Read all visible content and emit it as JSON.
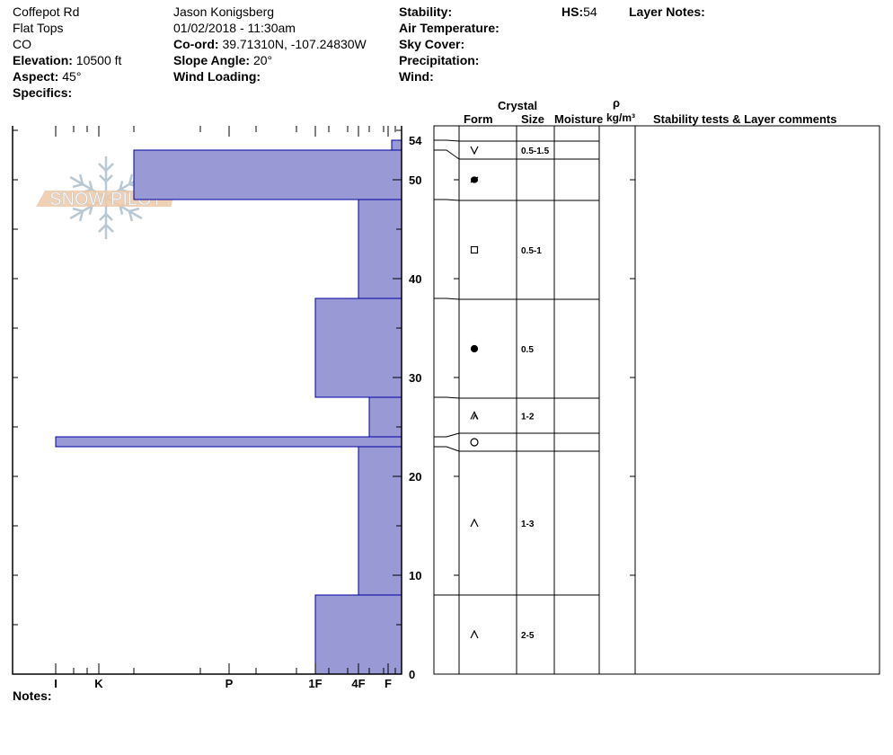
{
  "header": {
    "location": "Coffepot Rd",
    "range": "Flat Tops",
    "state": "CO",
    "elevation_label": "Elevation:",
    "elevation": "10500 ft",
    "aspect_label": "Aspect:",
    "aspect": "45°",
    "specifics_label": "Specifics:",
    "observer": "Jason Konigsberg",
    "datetime": "01/02/2018 - 11:30am",
    "coord_label": "Co-ord:",
    "coord": "39.71310N, -107.24830W",
    "slope_label": "Slope Angle:",
    "slope": "20°",
    "wind_loading_label": "Wind Loading:",
    "stability_label": "Stability:",
    "air_temp_label": "Air Temperature:",
    "sky_cover_label": "Sky Cover:",
    "precip_label": "Precipitation:",
    "wind_label": "Wind:",
    "hs_label": "HS:",
    "hs": "54",
    "layer_notes_label": "Layer Notes:"
  },
  "notes_label": "Notes:",
  "logo_text": "SNOW PILOT",
  "table_headers": {
    "crystal": "Crystal",
    "form": "Form",
    "size": "Size",
    "moisture": "Moisture",
    "rho": "ρ",
    "density_unit": "kg/m³",
    "comments": "Stability tests & Layer comments"
  },
  "colors": {
    "layer_fill": "#9999d6",
    "layer_stroke": "#0000a0"
  },
  "chart_data": {
    "type": "bar",
    "orientation": "horizontal",
    "xlabel": "",
    "ylabel": "",
    "hardness_ticks": [
      "I",
      "K",
      "P",
      "1F",
      "4F",
      "F"
    ],
    "depth_ticks": [
      0,
      10,
      20,
      30,
      40,
      50,
      54
    ],
    "ylim": [
      0,
      54
    ],
    "layers": [
      {
        "bottom": 0,
        "top": 8,
        "hardness": "1F",
        "form": "depth-hoar",
        "size": "2-5"
      },
      {
        "bottom": 8,
        "top": 23,
        "hardness": "4F",
        "form": "depth-hoar",
        "size": "1-3"
      },
      {
        "bottom": 23,
        "top": 24,
        "hardness": "I",
        "form": "melt-form",
        "size": ""
      },
      {
        "bottom": 24,
        "top": 28,
        "hardness": "4F-",
        "form": "depth-hoar-faceted",
        "size": "1-2"
      },
      {
        "bottom": 28,
        "top": 38,
        "hardness": "1F",
        "form": "rounded",
        "size": "0.5"
      },
      {
        "bottom": 38,
        "top": 48,
        "hardness": "4F",
        "form": "faceted",
        "size": "0.5-1"
      },
      {
        "bottom": 48,
        "top": 53,
        "hardness": "K-",
        "form": "melt-freeze-crust",
        "size": ""
      },
      {
        "bottom": 53,
        "top": 54,
        "hardness": "F-",
        "form": "surface-hoar",
        "size": "0.5-1.5"
      }
    ]
  }
}
